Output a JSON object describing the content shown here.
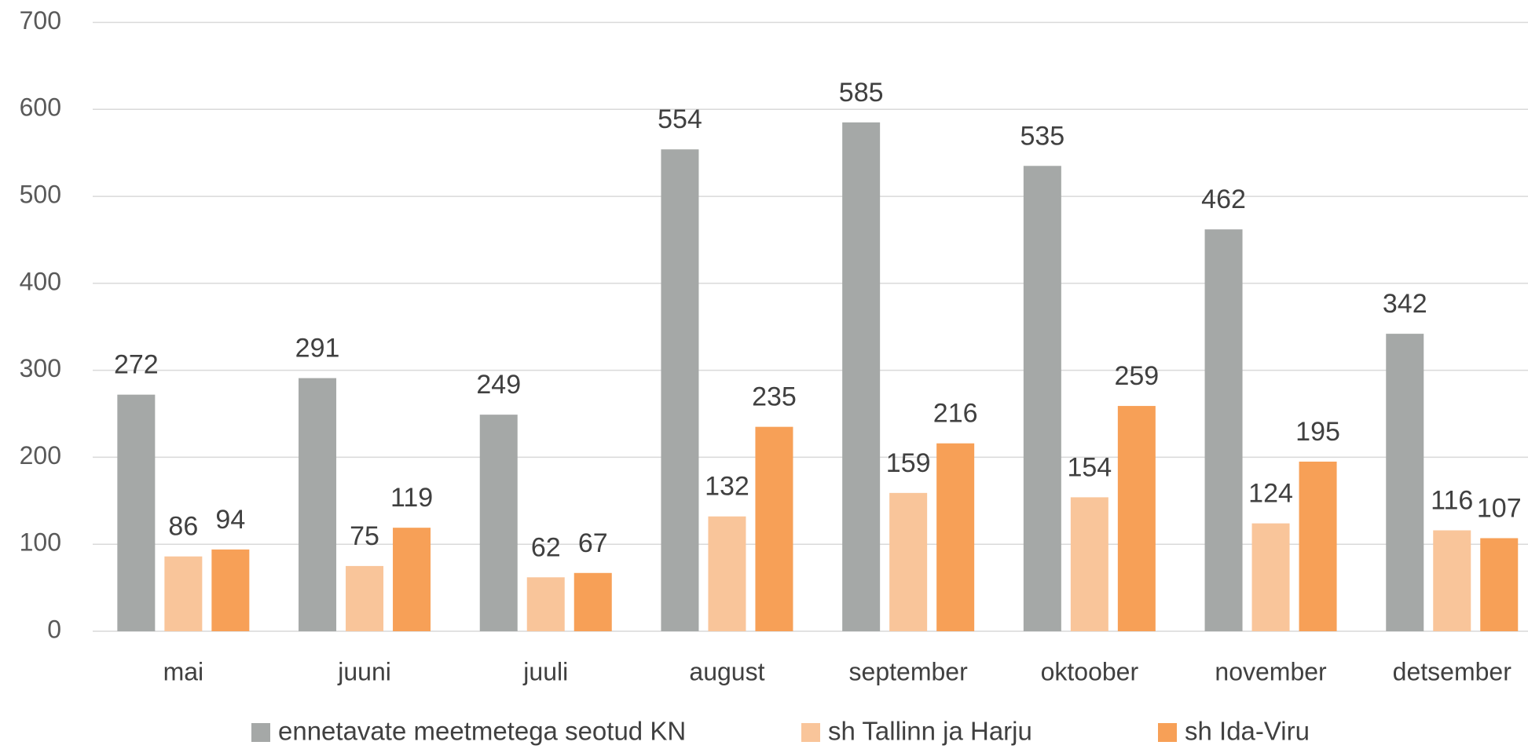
{
  "chart_data": {
    "type": "bar",
    "categories": [
      "mai",
      "juuni",
      "juuli",
      "august",
      "september",
      "oktoober",
      "november",
      "detsember"
    ],
    "series": [
      {
        "name": "ennetavate meetmetega seotud KN",
        "color": "#a5a8a7",
        "values": [
          272,
          291,
          249,
          554,
          585,
          535,
          462,
          342
        ]
      },
      {
        "name": "sh Tallinn ja Harju",
        "color": "#f9c59a",
        "values": [
          86,
          75,
          62,
          132,
          159,
          154,
          124,
          116
        ]
      },
      {
        "name": "sh Ida-Viru",
        "color": "#f7a057",
        "values": [
          94,
          119,
          67,
          235,
          216,
          259,
          195,
          107
        ]
      }
    ],
    "ylim": [
      0,
      700
    ],
    "yticks": [
      0,
      100,
      200,
      300,
      400,
      500,
      600,
      700
    ],
    "grid": true,
    "legend": "bottom"
  }
}
